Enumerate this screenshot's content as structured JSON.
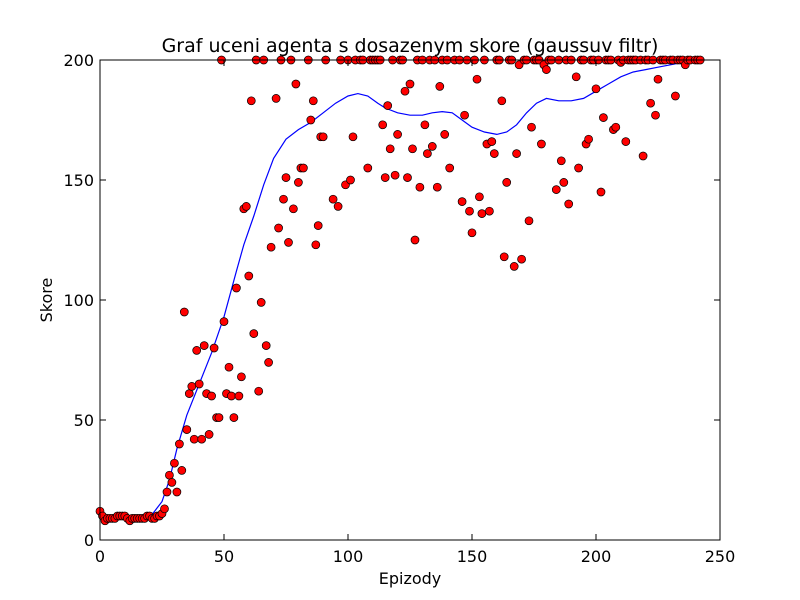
{
  "chart_data": {
    "type": "scatter",
    "title": "Graf uceni agenta s dosazenym skore (gaussuv filtr)",
    "xlabel": "Epizody",
    "ylabel": "Skore",
    "xlim": [
      0,
      250
    ],
    "ylim": [
      0,
      200
    ],
    "xticks": [
      0,
      50,
      100,
      150,
      200,
      250
    ],
    "yticks": [
      0,
      50,
      100,
      150,
      200
    ],
    "grid": false,
    "legend": "none",
    "series": [
      {
        "kind": "scatter",
        "color": "#ff0000",
        "edge_color": "#000000",
        "points": [
          [
            0,
            12
          ],
          [
            1,
            10
          ],
          [
            2,
            8
          ],
          [
            3,
            9
          ],
          [
            4,
            9
          ],
          [
            5,
            9
          ],
          [
            6,
            9
          ],
          [
            7,
            10
          ],
          [
            8,
            10
          ],
          [
            9,
            10
          ],
          [
            10,
            10
          ],
          [
            11,
            9
          ],
          [
            12,
            8
          ],
          [
            13,
            9
          ],
          [
            14,
            9
          ],
          [
            15,
            9
          ],
          [
            16,
            9
          ],
          [
            17,
            9
          ],
          [
            18,
            9
          ],
          [
            19,
            10
          ],
          [
            20,
            10
          ],
          [
            21,
            9
          ],
          [
            22,
            9
          ],
          [
            23,
            10
          ],
          [
            24,
            10
          ],
          [
            25,
            11
          ],
          [
            26,
            13
          ],
          [
            27,
            20
          ],
          [
            28,
            27
          ],
          [
            29,
            24
          ],
          [
            30,
            32
          ],
          [
            31,
            20
          ],
          [
            32,
            40
          ],
          [
            33,
            29
          ],
          [
            34,
            95
          ],
          [
            35,
            46
          ],
          [
            36,
            61
          ],
          [
            37,
            64
          ],
          [
            38,
            42
          ],
          [
            39,
            79
          ],
          [
            40,
            65
          ],
          [
            41,
            42
          ],
          [
            42,
            81
          ],
          [
            43,
            61
          ],
          [
            44,
            44
          ],
          [
            45,
            60
          ],
          [
            46,
            80
          ],
          [
            47,
            51
          ],
          [
            48,
            51
          ],
          [
            49,
            200
          ],
          [
            50,
            91
          ],
          [
            51,
            61
          ],
          [
            52,
            72
          ],
          [
            53,
            60
          ],
          [
            54,
            51
          ],
          [
            55,
            105
          ],
          [
            56,
            60
          ],
          [
            57,
            68
          ],
          [
            58,
            138
          ],
          [
            59,
            139
          ],
          [
            60,
            110
          ],
          [
            61,
            183
          ],
          [
            62,
            86
          ],
          [
            63,
            200
          ],
          [
            64,
            62
          ],
          [
            65,
            99
          ],
          [
            66,
            200
          ],
          [
            67,
            81
          ],
          [
            68,
            74
          ],
          [
            69,
            122
          ],
          [
            71,
            184
          ],
          [
            72,
            130
          ],
          [
            73,
            200
          ],
          [
            74,
            142
          ],
          [
            75,
            151
          ],
          [
            76,
            124
          ],
          [
            77,
            200
          ],
          [
            78,
            138
          ],
          [
            79,
            190
          ],
          [
            80,
            149
          ],
          [
            81,
            155
          ],
          [
            82,
            155
          ],
          [
            84,
            200
          ],
          [
            85,
            175
          ],
          [
            86,
            183
          ],
          [
            87,
            123
          ],
          [
            88,
            131
          ],
          [
            89,
            168
          ],
          [
            90,
            168
          ],
          [
            91,
            200
          ],
          [
            94,
            142
          ],
          [
            96,
            139
          ],
          [
            97,
            200
          ],
          [
            99,
            148
          ],
          [
            100,
            200
          ],
          [
            101,
            150
          ],
          [
            102,
            168
          ],
          [
            103,
            200
          ],
          [
            105,
            200
          ],
          [
            106,
            200
          ],
          [
            108,
            155
          ],
          [
            109,
            200
          ],
          [
            110,
            200
          ],
          [
            111,
            200
          ],
          [
            112,
            200
          ],
          [
            113,
            200
          ],
          [
            114,
            173
          ],
          [
            115,
            151
          ],
          [
            116,
            181
          ],
          [
            117,
            163
          ],
          [
            118,
            200
          ],
          [
            119,
            152
          ],
          [
            120,
            169
          ],
          [
            121,
            200
          ],
          [
            122,
            200
          ],
          [
            123,
            187
          ],
          [
            124,
            151
          ],
          [
            125,
            190
          ],
          [
            126,
            163
          ],
          [
            127,
            125
          ],
          [
            128,
            200
          ],
          [
            129,
            147
          ],
          [
            130,
            200
          ],
          [
            131,
            173
          ],
          [
            132,
            161
          ],
          [
            133,
            200
          ],
          [
            134,
            164
          ],
          [
            135,
            200
          ],
          [
            136,
            147
          ],
          [
            137,
            189
          ],
          [
            138,
            200
          ],
          [
            139,
            169
          ],
          [
            140,
            200
          ],
          [
            141,
            155
          ],
          [
            143,
            200
          ],
          [
            145,
            200
          ],
          [
            146,
            141
          ],
          [
            147,
            177
          ],
          [
            148,
            200
          ],
          [
            149,
            137
          ],
          [
            150,
            128
          ],
          [
            151,
            200
          ],
          [
            152,
            192
          ],
          [
            153,
            143
          ],
          [
            154,
            136
          ],
          [
            155,
            200
          ],
          [
            156,
            165
          ],
          [
            157,
            137
          ],
          [
            158,
            166
          ],
          [
            159,
            161
          ],
          [
            160,
            200
          ],
          [
            161,
            200
          ],
          [
            162,
            183
          ],
          [
            163,
            118
          ],
          [
            164,
            149
          ],
          [
            165,
            200
          ],
          [
            166,
            200
          ],
          [
            167,
            114
          ],
          [
            168,
            161
          ],
          [
            169,
            198
          ],
          [
            170,
            117
          ],
          [
            171,
            200
          ],
          [
            172,
            200
          ],
          [
            173,
            133
          ],
          [
            174,
            172
          ],
          [
            175,
            200
          ],
          [
            176,
            200
          ],
          [
            177,
            200
          ],
          [
            178,
            165
          ],
          [
            179,
            198
          ],
          [
            180,
            196
          ],
          [
            181,
            200
          ],
          [
            182,
            200
          ],
          [
            184,
            146
          ],
          [
            185,
            200
          ],
          [
            186,
            158
          ],
          [
            187,
            149
          ],
          [
            188,
            200
          ],
          [
            189,
            140
          ],
          [
            190,
            200
          ],
          [
            192,
            193
          ],
          [
            193,
            155
          ],
          [
            194,
            200
          ],
          [
            195,
            200
          ],
          [
            196,
            165
          ],
          [
            197,
            167
          ],
          [
            198,
            200
          ],
          [
            199,
            200
          ],
          [
            200,
            188
          ],
          [
            201,
            200
          ],
          [
            202,
            145
          ],
          [
            203,
            176
          ],
          [
            204,
            200
          ],
          [
            205,
            200
          ],
          [
            206,
            200
          ],
          [
            207,
            171
          ],
          [
            208,
            172
          ],
          [
            209,
            200
          ],
          [
            210,
            199
          ],
          [
            211,
            200
          ],
          [
            212,
            166
          ],
          [
            213,
            200
          ],
          [
            214,
            200
          ],
          [
            215,
            200
          ],
          [
            216,
            200
          ],
          [
            218,
            200
          ],
          [
            219,
            160
          ],
          [
            220,
            200
          ],
          [
            221,
            200
          ],
          [
            222,
            182
          ],
          [
            223,
            200
          ],
          [
            224,
            177
          ],
          [
            225,
            192
          ],
          [
            226,
            200
          ],
          [
            227,
            200
          ],
          [
            228,
            200
          ],
          [
            230,
            200
          ],
          [
            231,
            200
          ],
          [
            232,
            185
          ],
          [
            233,
            200
          ],
          [
            234,
            200
          ],
          [
            235,
            200
          ],
          [
            236,
            198
          ],
          [
            237,
            200
          ],
          [
            238,
            200
          ],
          [
            240,
            200
          ],
          [
            241,
            200
          ],
          [
            242,
            200
          ]
        ]
      },
      {
        "kind": "line",
        "color": "#0000ff",
        "points": [
          [
            0,
            10
          ],
          [
            10,
            9.5
          ],
          [
            15,
            9
          ],
          [
            20,
            9.5
          ],
          [
            22,
            12
          ],
          [
            25,
            16
          ],
          [
            28,
            25
          ],
          [
            31,
            38
          ],
          [
            35,
            52
          ],
          [
            40,
            65
          ],
          [
            45,
            78
          ],
          [
            50,
            93
          ],
          [
            55,
            112
          ],
          [
            58,
            123
          ],
          [
            62,
            135
          ],
          [
            66,
            148
          ],
          [
            70,
            159
          ],
          [
            75,
            167
          ],
          [
            80,
            171
          ],
          [
            85,
            174
          ],
          [
            90,
            178
          ],
          [
            95,
            182
          ],
          [
            100,
            185
          ],
          [
            104,
            186
          ],
          [
            108,
            185
          ],
          [
            112,
            182
          ],
          [
            115,
            180
          ],
          [
            120,
            178
          ],
          [
            125,
            177
          ],
          [
            130,
            177
          ],
          [
            134,
            178
          ],
          [
            138,
            178.5
          ],
          [
            142,
            178
          ],
          [
            146,
            175
          ],
          [
            150,
            172
          ],
          [
            155,
            170
          ],
          [
            160,
            169
          ],
          [
            164,
            170
          ],
          [
            168,
            173
          ],
          [
            172,
            178
          ],
          [
            176,
            182
          ],
          [
            180,
            184
          ],
          [
            185,
            183
          ],
          [
            190,
            183
          ],
          [
            195,
            184
          ],
          [
            200,
            187
          ],
          [
            205,
            190
          ],
          [
            210,
            193
          ],
          [
            215,
            195
          ],
          [
            220,
            196
          ],
          [
            225,
            197
          ],
          [
            230,
            198
          ],
          [
            235,
            199
          ],
          [
            240,
            199
          ],
          [
            243,
            199
          ]
        ]
      }
    ]
  }
}
